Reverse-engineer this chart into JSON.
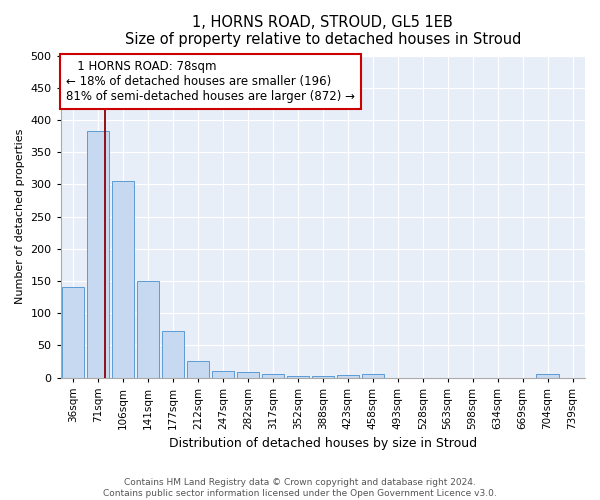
{
  "title": "1, HORNS ROAD, STROUD, GL5 1EB",
  "subtitle": "Size of property relative to detached houses in Stroud",
  "xlabel": "Distribution of detached houses by size in Stroud",
  "ylabel": "Number of detached properties",
  "bar_color": "#c6d9f0",
  "bar_edge_color": "#5b9bd5",
  "background_color": "#e8eef8",
  "bins": [
    "36sqm",
    "71sqm",
    "106sqm",
    "141sqm",
    "177sqm",
    "212sqm",
    "247sqm",
    "282sqm",
    "317sqm",
    "352sqm",
    "388sqm",
    "423sqm",
    "458sqm",
    "493sqm",
    "528sqm",
    "563sqm",
    "598sqm",
    "634sqm",
    "669sqm",
    "704sqm",
    "739sqm"
  ],
  "values": [
    140,
    383,
    305,
    150,
    72,
    25,
    10,
    8,
    5,
    3,
    3,
    4,
    5,
    0,
    0,
    0,
    0,
    0,
    0,
    5,
    0
  ],
  "property_label": "1 HORNS ROAD: 78sqm",
  "annotation_line1": "← 18% of detached houses are smaller (196)",
  "annotation_line2": "81% of semi-detached houses are larger (872) →",
  "vline_position": 1.28,
  "ylim": [
    0,
    500
  ],
  "yticks": [
    0,
    50,
    100,
    150,
    200,
    250,
    300,
    350,
    400,
    450,
    500
  ],
  "footnote1": "Contains HM Land Registry data © Crown copyright and database right 2024.",
  "footnote2": "Contains public sector information licensed under the Open Government Licence v3.0."
}
